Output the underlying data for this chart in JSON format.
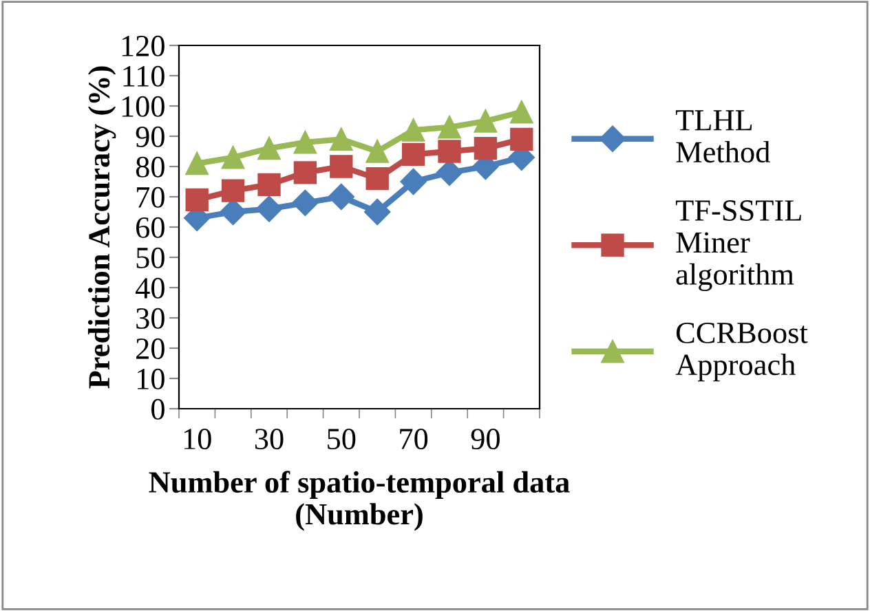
{
  "chart_data": {
    "type": "line",
    "xlabel": "Number of spatio-temporal data\n(Number)",
    "ylabel": "Prediction Accuracy (%)",
    "categories": [
      "10",
      null,
      "30",
      null,
      "50",
      null,
      "70",
      null,
      "90",
      null
    ],
    "ylim": [
      0,
      120
    ],
    "yticks": [
      0,
      10,
      20,
      30,
      40,
      50,
      60,
      70,
      80,
      90,
      100,
      110,
      120
    ],
    "grid": false,
    "legend": "right",
    "series": [
      {
        "name": "TLHL\nMethod",
        "color": "#4a7ebb",
        "marker": "diamond",
        "values": [
          63,
          65,
          66,
          68,
          70,
          65,
          75,
          78,
          80,
          83
        ]
      },
      {
        "name": "TF-SSTIL\nMiner\nalgorithm",
        "color": "#be4b48",
        "marker": "square",
        "values": [
          69,
          72,
          74,
          78,
          80,
          76,
          84,
          85,
          86,
          89
        ]
      },
      {
        "name": "CCRBoost\nApproach",
        "color": "#98b954",
        "marker": "triangle",
        "values": [
          81,
          83,
          86,
          88,
          89,
          85,
          92,
          93,
          95,
          98
        ]
      }
    ]
  }
}
